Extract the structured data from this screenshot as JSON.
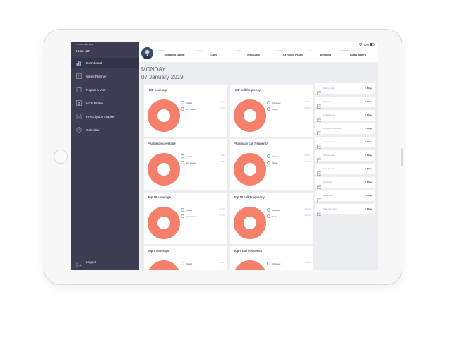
{
  "sidebar": {
    "status": "9:41 AM  Wed Jul 3",
    "title": "TOOL KIT",
    "items": [
      {
        "label": "Dashboard",
        "icon": "bar-chart-icon"
      },
      {
        "label": "Week Planner",
        "icon": "calendar-grid-icon"
      },
      {
        "label": "Report a Visit",
        "icon": "clipboard-icon"
      },
      {
        "label": "HCP Profile",
        "icon": "profile-icon"
      },
      {
        "label": "Prescription Tracker",
        "icon": "document-icon"
      },
      {
        "label": "Calendar",
        "icon": "clock-icon"
      }
    ],
    "logout": "Logout"
  },
  "status_bar": {
    "battery": "42%"
  },
  "header": {
    "fields": [
      {
        "key": "Hello It's",
        "value": "Mohamed Gamal"
      },
      {
        "key": "Region",
        "value": "Cairo"
      },
      {
        "key": "Brick",
        "value": "Wed Cairo"
      },
      {
        "key": "Franchise",
        "value": "La Roche Posay"
      },
      {
        "key": "Line",
        "value": "Antholios"
      },
      {
        "key": "District Manager",
        "value": "Asaad Fakhry"
      }
    ]
  },
  "main": {
    "day": "MONDAY",
    "date": "07 January 2019"
  },
  "colors": {
    "donut": "#f4806b",
    "visited": "#5bc0de",
    "not_visited": "#f4806b",
    "sidebar": "#3d3e53"
  },
  "cards": [
    {
      "title": "HCP coverage",
      "leg1": "Visited",
      "leg2": "Not Visited",
      "val1": "0 HCP",
      "val2": "0 HCP"
    },
    {
      "title": "HCP call frequency",
      "leg1": "Achieved",
      "leg2": "Target",
      "val1": "0 Visits",
      "val2": "0 Visits"
    },
    {
      "title": "Pharmacy coverage",
      "leg1": "Visited",
      "leg2": "Not Visited",
      "val1": "0 Ph",
      "val2": "0 Ph"
    },
    {
      "title": "Pharmacy call frequency",
      "leg1": "Achieved",
      "leg2": "Target",
      "val1": "0 Visits",
      "val2": "0 Visits"
    },
    {
      "title": "Top 10 coverage",
      "leg1": "Visited",
      "leg2": "Not Visited",
      "val1": "0 HCP",
      "val2": "0 HCP"
    },
    {
      "title": "Top 10 call Frequency",
      "leg1": "Achieved",
      "leg2": "Target",
      "val1": "0 Visits",
      "val2": "0 Visits"
    },
    {
      "title": "Top 5 coverage",
      "leg1": "Visited",
      "leg2": "",
      "val1": "0 HCP",
      "val2": ""
    },
    {
      "title": "Top 5 call frequency",
      "leg1": "Achieved",
      "leg2": "",
      "val1": "0 Visits",
      "val2": ""
    }
  ],
  "right_panel": [
    {
      "label": "Working days",
      "value": "0 Days"
    },
    {
      "label": "Visit days",
      "value": "0 Days"
    },
    {
      "label": "Conferences",
      "value": "0 Days"
    },
    {
      "label": "Conferences Leave",
      "value": "0 Days"
    },
    {
      "label": "Annual leave",
      "value": "0 Days"
    },
    {
      "label": "Official leave",
      "value": "0 Days"
    },
    {
      "label": "Annual leave",
      "value": "0 Days"
    },
    {
      "label": "Academic",
      "value": "0 Days"
    },
    {
      "label": "Office work",
      "value": "0 Days"
    },
    {
      "label": "Pharmacy Day",
      "value": "0 Days"
    }
  ]
}
